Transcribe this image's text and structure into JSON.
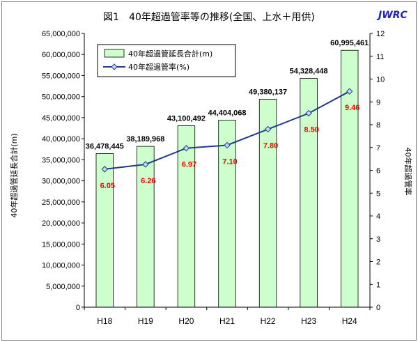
{
  "header": {
    "title": "図1　40年超過管率等の推移(全国、上水＋用供)",
    "brand": "JWRC"
  },
  "chart_data": {
    "type": "bar",
    "categories": [
      "H18",
      "H19",
      "H20",
      "H21",
      "H22",
      "H23",
      "H24"
    ],
    "series": [
      {
        "name": "40年超過管延長合計(m)",
        "type": "bar",
        "axis": "left",
        "values": [
          36478445,
          38189968,
          43100492,
          44404068,
          49380137,
          54328448,
          60995461
        ],
        "labels": [
          "36,478,445",
          "38,189,968",
          "43,100,492",
          "44,404,068",
          "49,380,137",
          "54,328,448",
          "60,995,461"
        ],
        "color": "#ccffcc"
      },
      {
        "name": "40年超過管率(%)",
        "type": "line",
        "axis": "right",
        "values": [
          6.05,
          6.26,
          6.97,
          7.1,
          7.8,
          8.5,
          9.46
        ],
        "labels": [
          "6.05",
          "6.26",
          "6.97",
          "7.10",
          "7.80",
          "8.50",
          "9.46"
        ],
        "color": "#1f3c8c",
        "label_color": "#ff0000"
      }
    ],
    "ylabel_left": "40年超過管延長合計(m)",
    "ylabel_right": "40年超過管率",
    "ylim_left": [
      0,
      65000000
    ],
    "ylim_right": [
      0,
      12
    ],
    "yticks_left": [
      "0",
      "5,000,000",
      "10,000,000",
      "15,000,000",
      "20,000,000",
      "25,000,000",
      "30,000,000",
      "35,000,000",
      "40,000,000",
      "45,000,000",
      "50,000,000",
      "55,000,000",
      "60,000,000",
      "65,000,000"
    ],
    "yticks_right": [
      "0",
      "1",
      "2",
      "3",
      "4",
      "5",
      "6",
      "7",
      "8",
      "9",
      "10",
      "11",
      "12"
    ],
    "grid": false,
    "legend_position": "top-left"
  }
}
